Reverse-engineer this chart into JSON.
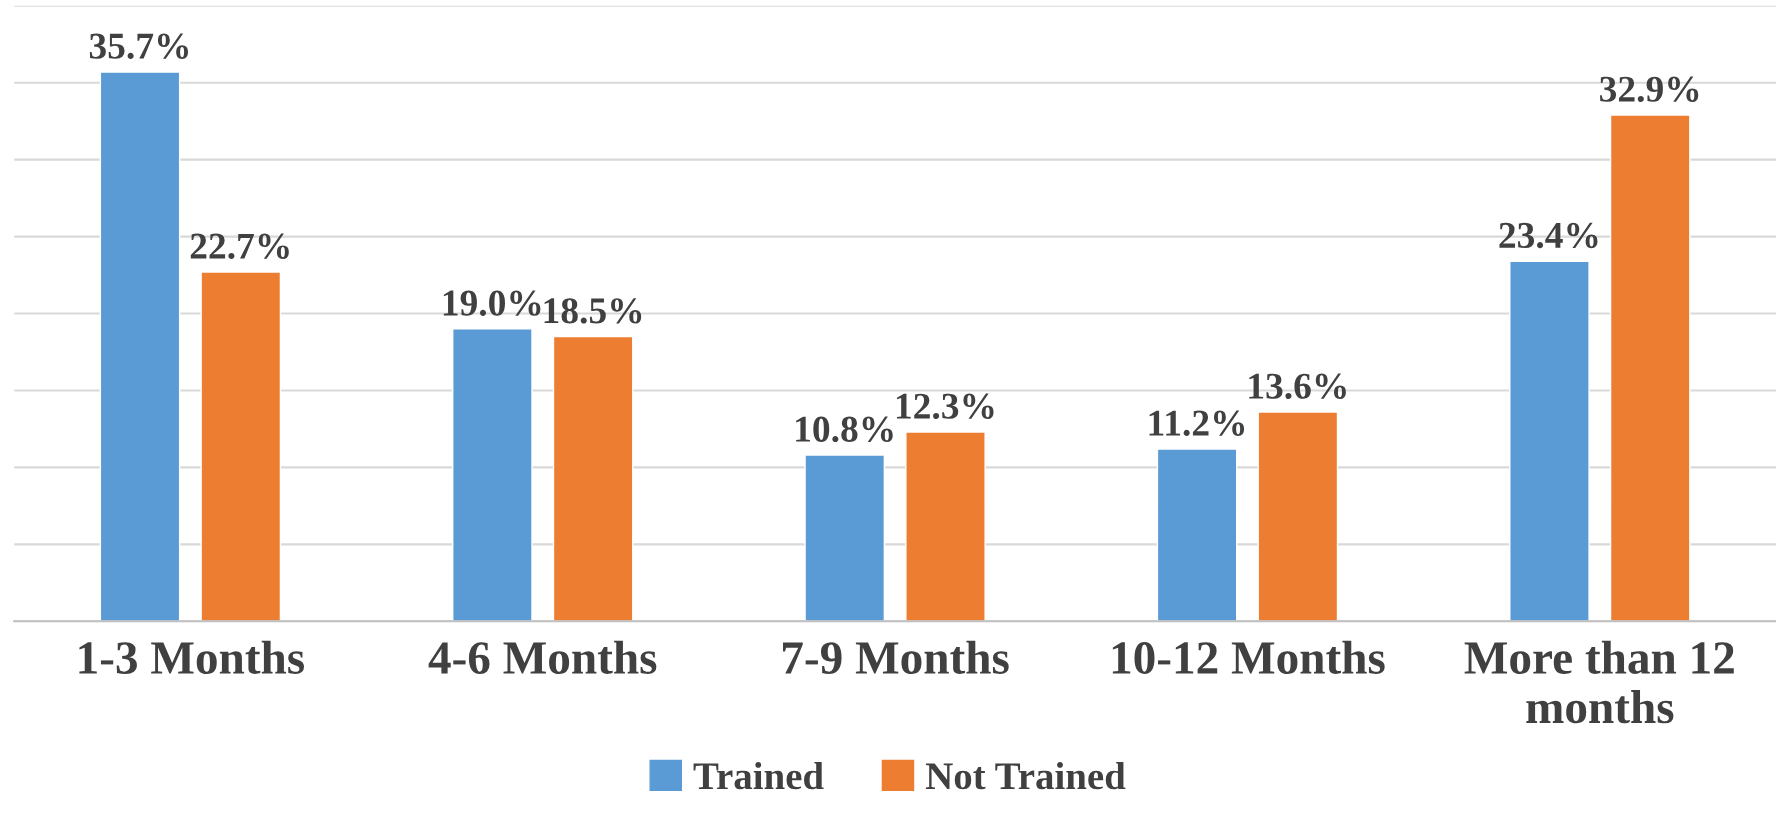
{
  "chart_data": {
    "type": "bar",
    "categories": [
      "1-3 Months",
      "4-6 Months",
      "7-9 Months",
      "10-12 Months",
      "More than 12 months"
    ],
    "series": [
      {
        "name": "Trained",
        "color": "#5b9bd5",
        "values": [
          35.7,
          19.0,
          10.8,
          11.2,
          23.4
        ],
        "value_labels": [
          "35.7%",
          "19.0%",
          "10.8%",
          "11.2%",
          "23.4%"
        ]
      },
      {
        "name": "Not Trained",
        "color": "#ed7d31",
        "values": [
          22.7,
          18.5,
          12.3,
          13.6,
          32.9
        ],
        "value_labels": [
          "22.7%",
          "18.5%",
          "12.3%",
          "13.6%",
          "32.9%"
        ]
      }
    ],
    "ylim": [
      0,
      40
    ],
    "yticks": [
      {
        "value": 0,
        "label": null
      },
      {
        "value": 5,
        "label": null
      },
      {
        "value": 10,
        "label": null
      },
      {
        "value": 15,
        "label": null
      },
      {
        "value": 20,
        "label": null
      },
      {
        "value": 25,
        "label": null
      },
      {
        "value": 30,
        "label": null
      },
      {
        "value": 35,
        "label": null
      },
      {
        "value": 40,
        "label": null
      }
    ],
    "grid": "y",
    "legend": "bottom",
    "tick_labels": "x"
  }
}
